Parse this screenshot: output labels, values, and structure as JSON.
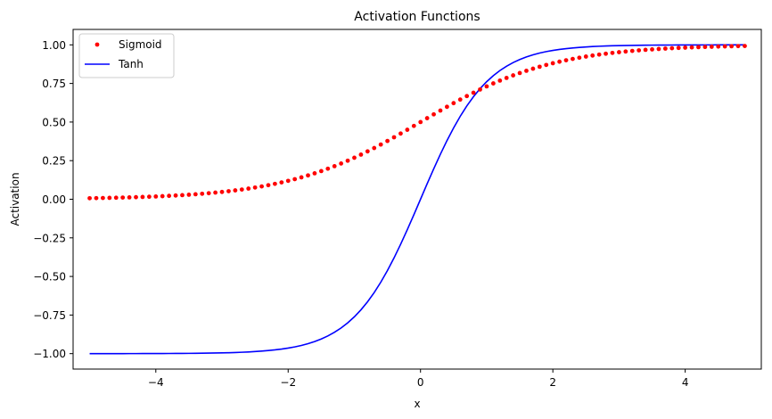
{
  "chart_data": {
    "type": "line",
    "title": "Activation Functions",
    "xlabel": "x",
    "ylabel": "Activation",
    "xlim": [
      -5.25,
      5.15
    ],
    "ylim": [
      -1.1,
      1.1
    ],
    "x_ticks": [
      -4,
      -2,
      0,
      2,
      4
    ],
    "x_tick_labels": [
      "−4",
      "−2",
      "0",
      "2",
      "4"
    ],
    "y_ticks": [
      -1.0,
      -0.75,
      -0.5,
      -0.25,
      0.0,
      0.25,
      0.5,
      0.75,
      1.0
    ],
    "y_tick_labels": [
      "−1.00",
      "−0.75",
      "−0.50",
      "−0.25",
      "0.00",
      "0.25",
      "0.50",
      "0.75",
      "1.00"
    ],
    "grid": false,
    "legend_position": "top-left",
    "x_range": {
      "start": -5.0,
      "stop": 4.9,
      "step": 0.1
    },
    "series": [
      {
        "name": "Sigmoid",
        "function": "sigmoid",
        "style": "dots",
        "color": "#ff0000"
      },
      {
        "name": "Tanh",
        "function": "tanh",
        "style": "line",
        "color": "#0000ff"
      }
    ]
  }
}
